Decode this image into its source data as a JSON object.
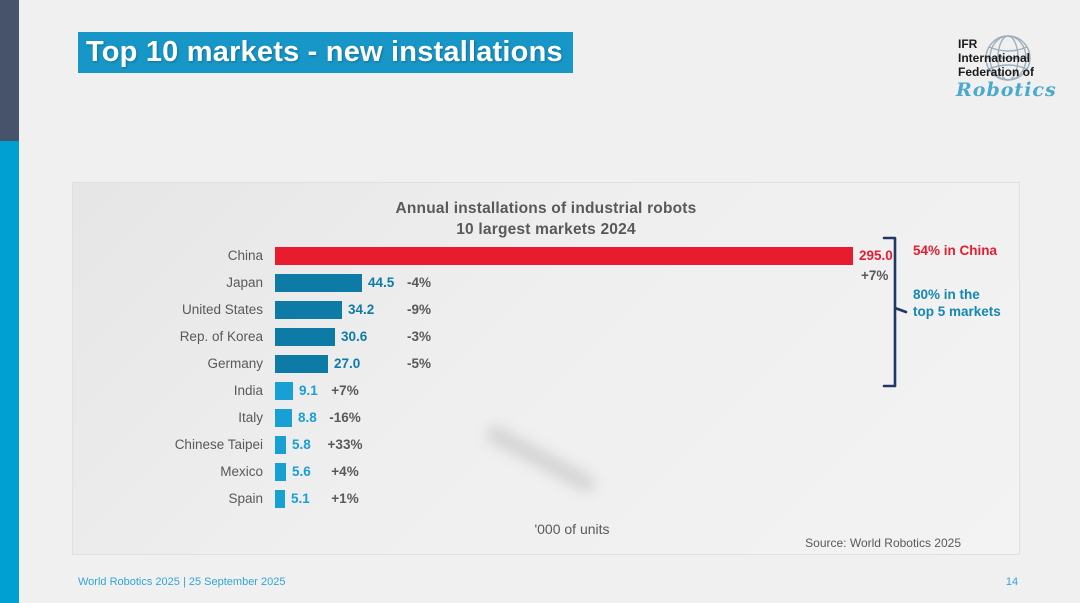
{
  "slide": {
    "title": "Top 10 markets - new installations",
    "footer_left": "World Robotics 2025  | 25 September 2025",
    "page_number": "14"
  },
  "logo": {
    "line1": "IFR",
    "line2": "International",
    "line3": "Federation of",
    "script": "Robotics",
    "globe_icon": "globe-icon"
  },
  "palette": {
    "title_highlight": "#1796c8",
    "china_red": "#e81c2e",
    "top5_teal": "#0e7ba6",
    "rest_cyan": "#18a0d4",
    "text_gray": "#595959",
    "bracket_navy": "#1f3864",
    "annotation_blue": "#1687b0",
    "footer_blue": "#2fa6d8"
  },
  "chart_data": {
    "type": "bar",
    "orientation": "horizontal",
    "title_line1": "Annual installations of industrial robots",
    "title_line2": "10 largest markets 2024",
    "xlabel": "'000 of units",
    "source": "Source: World Robotics 2025",
    "categories": [
      "China",
      "Japan",
      "United States",
      "Rep. of Korea",
      "Germany",
      "India",
      "Italy",
      "Chinese Taipei",
      "Mexico",
      "Spain"
    ],
    "values": [
      295.0,
      44.5,
      34.2,
      30.6,
      27.0,
      9.1,
      8.8,
      5.8,
      5.6,
      5.1
    ],
    "rows": [
      {
        "label": "China",
        "value": 295.0,
        "display": "295.0",
        "pct": "+7%",
        "group": "china"
      },
      {
        "label": "Japan",
        "value": 44.5,
        "display": "44.5",
        "pct": "-4%",
        "group": "top5"
      },
      {
        "label": "United States",
        "value": 34.2,
        "display": "34.2",
        "pct": "-9%",
        "group": "top5"
      },
      {
        "label": "Rep. of Korea",
        "value": 30.6,
        "display": "30.6",
        "pct": "-3%",
        "group": "top5"
      },
      {
        "label": "Germany",
        "value": 27.0,
        "display": "27.0",
        "pct": "-5%",
        "group": "top5"
      },
      {
        "label": "India",
        "value": 9.1,
        "display": "9.1",
        "pct": "+7%",
        "group": "rest"
      },
      {
        "label": "Italy",
        "value": 8.8,
        "display": "8.8",
        "pct": "-16%",
        "group": "rest"
      },
      {
        "label": "Chinese Taipei",
        "value": 5.8,
        "display": "5.8",
        "pct": "+33%",
        "group": "rest"
      },
      {
        "label": "Mexico",
        "value": 5.6,
        "display": "5.6",
        "pct": "+4%",
        "group": "rest"
      },
      {
        "label": "Spain",
        "value": 5.1,
        "display": "5.1",
        "pct": "+1%",
        "group": "rest"
      }
    ],
    "annotations": [
      {
        "text": "54% in China",
        "color": "#e81c2e"
      },
      {
        "text_line1": "80% in the",
        "text_line2": "top 5 markets",
        "color": "#1687b0"
      }
    ],
    "legend": null,
    "grid": false,
    "xlim": [
      0,
      295
    ]
  }
}
